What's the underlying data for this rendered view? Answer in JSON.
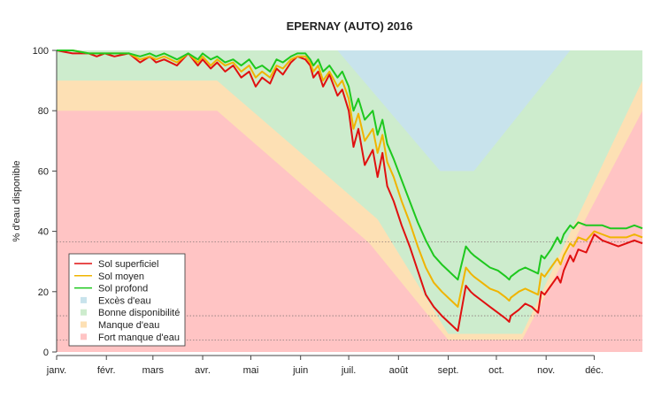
{
  "chart_data": {
    "type": "line",
    "title": "EPERNAY (AUTO) 2016",
    "ylabel": "% d'eau disponible",
    "xlabel": "",
    "ylim": [
      0,
      100
    ],
    "yticks": [
      0,
      20,
      40,
      60,
      80,
      100
    ],
    "xlim": [
      0,
      365
    ],
    "months": [
      "janv.",
      "févr.",
      "mars",
      "avr.",
      "mai",
      "juin",
      "juil.",
      "août",
      "sept.",
      "oct.",
      "nov.",
      "déc."
    ],
    "month_start_days": [
      0,
      31,
      60,
      91,
      121,
      152,
      182,
      213,
      244,
      274,
      305,
      335
    ],
    "zones": [
      {
        "name": "Fort manque d'eau",
        "color": "#ffc4c4",
        "points": [
          [
            0,
            80
          ],
          [
            100,
            80
          ],
          [
            195,
            36
          ],
          [
            244,
            4
          ],
          [
            290,
            4
          ],
          [
            365,
            80
          ]
        ]
      },
      {
        "name": "Manque d'eau",
        "color": "#fde0b4",
        "points": [
          [
            0,
            90
          ],
          [
            100,
            90
          ],
          [
            200,
            44
          ],
          [
            244,
            6
          ],
          [
            290,
            6
          ],
          [
            365,
            90
          ]
        ]
      },
      {
        "name": "Bonne disponibilité",
        "color": "#cdeccd",
        "points": [
          [
            0,
            100
          ],
          [
            365,
            100
          ]
        ]
      },
      {
        "name": "Excès d'eau",
        "color": "#c8e3ec",
        "points": [
          [
            175,
            100
          ],
          [
            239,
            60
          ],
          [
            260,
            60
          ],
          [
            320,
            100
          ]
        ]
      }
    ],
    "series": [
      {
        "name": "Sol superficiel",
        "color": "#e01010",
        "x": [
          0,
          10,
          20,
          25,
          30,
          36,
          45,
          52,
          58,
          62,
          67,
          75,
          82,
          88,
          91,
          96,
          100,
          105,
          110,
          115,
          120,
          124,
          128,
          133,
          137,
          141,
          146,
          150,
          155,
          158,
          160,
          163,
          166,
          170,
          175,
          178,
          182,
          185,
          188,
          192,
          197,
          200,
          203,
          206,
          210,
          215,
          220,
          225,
          230,
          235,
          240,
          244,
          250,
          255,
          258,
          260,
          265,
          270,
          275,
          280,
          282,
          283,
          288,
          292,
          296,
          300,
          302,
          304,
          308,
          312,
          314,
          316,
          320,
          322,
          325,
          330,
          335,
          340,
          345,
          350,
          355,
          360,
          365
        ],
        "y": [
          100,
          99,
          99,
          98,
          99,
          98,
          99,
          96,
          98,
          96,
          97,
          95,
          99,
          95,
          97,
          94,
          96,
          93,
          95,
          91,
          93,
          88,
          91,
          89,
          94,
          92,
          96,
          98,
          97,
          95,
          91,
          93,
          88,
          92,
          85,
          87,
          80,
          68,
          74,
          62,
          67,
          58,
          66,
          55,
          50,
          42,
          35,
          27,
          19,
          15,
          12,
          10,
          7,
          22,
          20,
          19,
          17,
          15,
          13,
          11,
          10,
          12,
          14,
          16,
          15,
          13,
          20,
          19,
          22,
          25,
          23,
          27,
          32,
          30,
          34,
          33,
          39,
          37,
          36,
          35,
          36,
          37,
          36
        ]
      },
      {
        "name": "Sol moyen",
        "color": "#f0b400",
        "x": [
          0,
          10,
          20,
          25,
          30,
          36,
          45,
          52,
          58,
          62,
          67,
          75,
          82,
          88,
          91,
          96,
          100,
          105,
          110,
          115,
          120,
          124,
          128,
          133,
          137,
          141,
          146,
          150,
          155,
          158,
          160,
          163,
          166,
          170,
          175,
          178,
          182,
          185,
          188,
          192,
          197,
          200,
          203,
          206,
          210,
          215,
          220,
          225,
          230,
          235,
          240,
          244,
          250,
          255,
          258,
          260,
          265,
          270,
          275,
          280,
          282,
          283,
          288,
          292,
          296,
          300,
          302,
          304,
          308,
          312,
          314,
          316,
          320,
          322,
          325,
          330,
          335,
          340,
          345,
          350,
          355,
          360,
          365
        ],
        "y": [
          100,
          100,
          99,
          99,
          99,
          99,
          99,
          97,
          98,
          97,
          98,
          96,
          99,
          96,
          98,
          95,
          97,
          95,
          96,
          93,
          95,
          91,
          93,
          91,
          95,
          94,
          97,
          98,
          98,
          96,
          93,
          95,
          90,
          93,
          88,
          90,
          84,
          74,
          79,
          70,
          74,
          66,
          72,
          63,
          58,
          50,
          43,
          35,
          28,
          23,
          20,
          18,
          15,
          28,
          26,
          25,
          23,
          21,
          20,
          18,
          17,
          18,
          20,
          21,
          20,
          19,
          26,
          25,
          28,
          31,
          29,
          32,
          36,
          35,
          38,
          37,
          40,
          39,
          38,
          38,
          38,
          39,
          38
        ]
      },
      {
        "name": "Sol profond",
        "color": "#1ec81e",
        "x": [
          0,
          10,
          20,
          25,
          30,
          36,
          45,
          52,
          58,
          62,
          67,
          75,
          82,
          88,
          91,
          96,
          100,
          105,
          110,
          115,
          120,
          124,
          128,
          133,
          137,
          141,
          146,
          150,
          155,
          158,
          160,
          163,
          166,
          170,
          175,
          178,
          182,
          185,
          188,
          192,
          197,
          200,
          203,
          206,
          210,
          215,
          220,
          225,
          230,
          235,
          240,
          244,
          250,
          255,
          258,
          260,
          265,
          270,
          275,
          280,
          282,
          283,
          288,
          292,
          296,
          300,
          302,
          304,
          308,
          312,
          314,
          316,
          320,
          322,
          325,
          330,
          335,
          340,
          345,
          350,
          355,
          360,
          365
        ],
        "y": [
          100,
          100,
          99,
          99,
          99,
          99,
          99,
          98,
          99,
          98,
          99,
          97,
          99,
          97,
          99,
          97,
          98,
          96,
          97,
          95,
          97,
          94,
          95,
          93,
          97,
          96,
          98,
          99,
          99,
          97,
          95,
          97,
          93,
          95,
          91,
          93,
          88,
          80,
          84,
          77,
          80,
          72,
          77,
          69,
          64,
          57,
          50,
          43,
          37,
          32,
          29,
          27,
          24,
          35,
          33,
          32,
          30,
          28,
          27,
          25,
          24,
          25,
          27,
          28,
          27,
          26,
          32,
          31,
          34,
          38,
          36,
          39,
          42,
          41,
          43,
          42,
          42,
          42,
          41,
          41,
          41,
          42,
          41
        ]
      }
    ],
    "legend_entries": [
      "Sol superficiel",
      "Sol moyen",
      "Sol profond",
      "Excès d'eau",
      "Bonne disponibilité",
      "Manque d'eau",
      "Fort manque d'eau"
    ],
    "legend_position": "bottom-left",
    "reference_lines": [
      36.5,
      12,
      4
    ],
    "grid": false
  }
}
